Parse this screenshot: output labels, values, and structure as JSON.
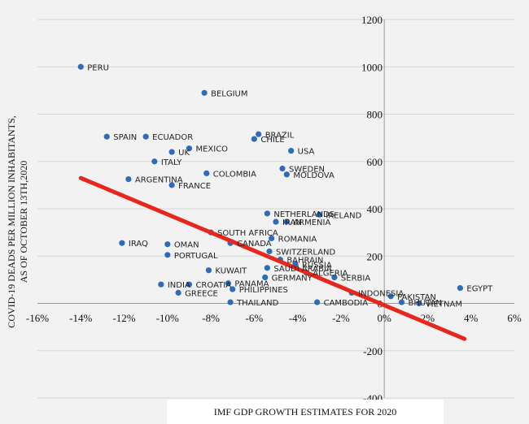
{
  "chart_data": {
    "type": "scatter",
    "title": "",
    "xlabel": "IMF GDP GROWTH ESTIMATES FOR 2020",
    "ylabel_line1": "COVID-19 DEADS PER MILLION INHABITANTS,",
    "ylabel_line2": "AS OF OCTOBER 13TH,2020",
    "xlim": [
      -16,
      6
    ],
    "ylim": [
      -400,
      1200
    ],
    "x_ticks": [
      -16,
      -14,
      -12,
      -10,
      -8,
      -6,
      -4,
      -2,
      0,
      2,
      4,
      6
    ],
    "x_tick_labels": [
      "-16%",
      "-14%",
      "-12%",
      "-10%",
      "-8%",
      "-6%",
      "-4%",
      "-2%",
      "0%",
      "2%",
      "4%",
      "6%"
    ],
    "y_ticks": [
      -400,
      -200,
      0,
      200,
      400,
      600,
      800,
      1000,
      1200
    ],
    "y_tick_labels": [
      "-400",
      "-200",
      "0",
      "200",
      "400",
      "600",
      "800",
      "1000",
      "1200"
    ],
    "grid": true,
    "legend": "none",
    "point_color": "#2e6bb8",
    "trendline_color": "#e8261c",
    "trendline": {
      "x": [
        -14,
        3.7
      ],
      "y": [
        530,
        -150
      ]
    },
    "points": [
      {
        "label": "PERU",
        "x": -14.0,
        "y": 1000
      },
      {
        "label": "BELGIUM",
        "x": -8.3,
        "y": 890
      },
      {
        "label": "BRAZIL",
        "x": -5.8,
        "y": 715
      },
      {
        "label": "CHILE",
        "x": -6.0,
        "y": 695
      },
      {
        "label": "SPAIN",
        "x": -12.8,
        "y": 705
      },
      {
        "label": "ECUADOR",
        "x": -11.0,
        "y": 705
      },
      {
        "label": "MEXICO",
        "x": -9.0,
        "y": 655
      },
      {
        "label": "UK",
        "x": -9.8,
        "y": 640
      },
      {
        "label": "USA",
        "x": -4.3,
        "y": 645
      },
      {
        "label": "ITALY",
        "x": -10.6,
        "y": 600
      },
      {
        "label": "SWEDEN",
        "x": -4.7,
        "y": 570
      },
      {
        "label": "MOLDOVA",
        "x": -4.5,
        "y": 545
      },
      {
        "label": "COLOMBIA",
        "x": -8.2,
        "y": 550
      },
      {
        "label": "ARGENTINA",
        "x": -11.8,
        "y": 525
      },
      {
        "label": "FRANCE",
        "x": -9.8,
        "y": 500
      },
      {
        "label": "NETHERLANDS",
        "x": -5.4,
        "y": 380
      },
      {
        "label": "IRELAND",
        "x": -3.0,
        "y": 375
      },
      {
        "label": "IRAN",
        "x": -5.0,
        "y": 345
      },
      {
        "label": "ARMENIA",
        "x": -4.5,
        "y": 345
      },
      {
        "label": "SOUTH AFRICA",
        "x": -8.0,
        "y": 300
      },
      {
        "label": "ROMANIA",
        "x": -5.2,
        "y": 275
      },
      {
        "label": "IRAQ",
        "x": -12.1,
        "y": 255
      },
      {
        "label": "OMAN",
        "x": -10.0,
        "y": 250
      },
      {
        "label": "CANADA",
        "x": -7.1,
        "y": 255
      },
      {
        "label": "PORTUGAL",
        "x": -10.0,
        "y": 205
      },
      {
        "label": "SWITZERLAND",
        "x": -5.3,
        "y": 220
      },
      {
        "label": "BAHRAIN",
        "x": -4.8,
        "y": 185
      },
      {
        "label": "KUWAIT",
        "x": -8.1,
        "y": 140
      },
      {
        "label": "SAUDI ARABIA",
        "x": -5.4,
        "y": 150
      },
      {
        "label": "RUSSIA",
        "x": -4.1,
        "y": 165
      },
      {
        "label": "ALGERIA",
        "x": -3.6,
        "y": 130
      },
      {
        "label": "GERMANY",
        "x": -5.5,
        "y": 110
      },
      {
        "label": "SERBIA",
        "x": -2.3,
        "y": 110
      },
      {
        "label": "INDIA",
        "x": -10.3,
        "y": 80
      },
      {
        "label": "CROATIA",
        "x": -9.0,
        "y": 80
      },
      {
        "label": "GREECE",
        "x": -9.5,
        "y": 45
      },
      {
        "label": "PANAMA",
        "x": -7.2,
        "y": 85
      },
      {
        "label": "PHILIPPINES",
        "x": -7.0,
        "y": 60
      },
      {
        "label": "INDONESIA",
        "x": -1.5,
        "y": 45
      },
      {
        "label": "PAKISTAN",
        "x": 0.3,
        "y": 30
      },
      {
        "label": "BHUTAN",
        "x": 0.8,
        "y": 5
      },
      {
        "label": "VIETNAM",
        "x": 1.6,
        "y": 0
      },
      {
        "label": "THAILAND",
        "x": -7.1,
        "y": 5
      },
      {
        "label": "CAMBODIA",
        "x": -3.1,
        "y": 5
      },
      {
        "label": "EGYPT",
        "x": 3.5,
        "y": 65
      }
    ]
  }
}
